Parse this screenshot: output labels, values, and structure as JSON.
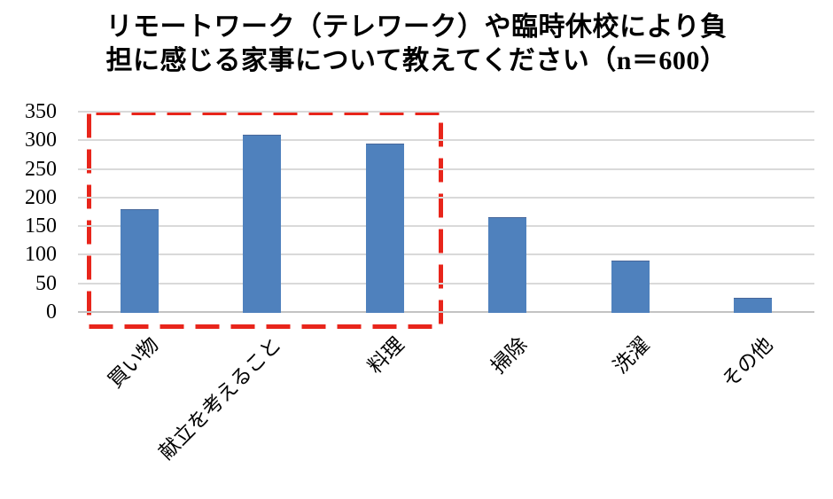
{
  "title_lines": [
    "リモートワーク（テレワーク）や臨時休校により負",
    "担に感じる家事について教えてください（n＝600）"
  ],
  "chart_data": {
    "type": "bar",
    "title": "リモートワーク（テレワーク）や臨時休校により負担に感じる家事について教えてください（n＝600）",
    "n": 600,
    "categories": [
      "買い物",
      "献立を考えること",
      "料理",
      "掃除",
      "洗濯",
      "その他"
    ],
    "values": [
      180,
      310,
      295,
      165,
      90,
      25
    ],
    "xlabel": "",
    "ylabel": "",
    "ylim": [
      0,
      350
    ],
    "yticks": [
      0,
      50,
      100,
      150,
      200,
      250,
      300,
      350
    ],
    "grid": true,
    "legend": false,
    "bar_color": "#4f81bd",
    "gridline_color": "#d9d9d9",
    "x_tick_rotation_deg": 45,
    "highlight": {
      "shape": "dashed-rectangle",
      "color": "#e8251b",
      "enclosed_categories": [
        "買い物",
        "献立を考えること",
        "料理"
      ]
    }
  }
}
